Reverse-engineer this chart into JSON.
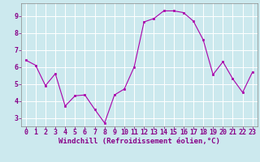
{
  "x": [
    0,
    1,
    2,
    3,
    4,
    5,
    6,
    7,
    8,
    9,
    10,
    11,
    12,
    13,
    14,
    15,
    16,
    17,
    18,
    19,
    20,
    21,
    22,
    23
  ],
  "y": [
    6.4,
    6.1,
    4.9,
    5.6,
    3.7,
    4.3,
    4.35,
    3.5,
    2.7,
    4.35,
    4.7,
    6.0,
    8.65,
    8.85,
    9.3,
    9.3,
    9.2,
    8.7,
    7.6,
    5.55,
    6.3,
    5.3,
    4.5,
    5.7
  ],
  "xlabel": "Windchill (Refroidissement éolien,°C)",
  "xlim": [
    -0.5,
    23.5
  ],
  "ylim": [
    2.5,
    9.75
  ],
  "yticks": [
    3,
    4,
    5,
    6,
    7,
    8,
    9
  ],
  "xticks": [
    0,
    1,
    2,
    3,
    4,
    5,
    6,
    7,
    8,
    9,
    10,
    11,
    12,
    13,
    14,
    15,
    16,
    17,
    18,
    19,
    20,
    21,
    22,
    23
  ],
  "line_color": "#aa00aa",
  "marker_color": "#aa00aa",
  "bg_color": "#cce9ee",
  "grid_color": "#ffffff",
  "tick_color": "#880088",
  "label_color": "#880088",
  "font_size": 6,
  "xlabel_fontsize": 6.5
}
